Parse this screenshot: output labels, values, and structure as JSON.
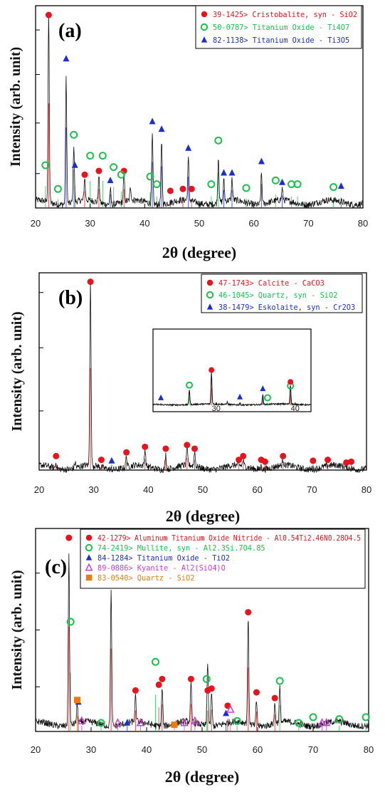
{
  "colors": {
    "red": "#e8141c",
    "green": "#19c24a",
    "blue": "#1a2fd0",
    "magenta": "#d43bd4",
    "orange": "#f07a10",
    "pattern": "#111111"
  },
  "chart_data": [
    {
      "type": "line",
      "panel_label": "(a)",
      "xlabel": "2θ (degree)",
      "ylabel": "Intensity (arb. unit)",
      "xlim": [
        20,
        80
      ],
      "xticks": [
        "20",
        "30",
        "40",
        "50",
        "60",
        "70",
        "80"
      ],
      "legend": [
        {
          "marker": "circle-filled",
          "color": "red",
          "text": "39-1425> Cristobalite, syn - SiO2"
        },
        {
          "marker": "circle-open",
          "color": "green",
          "text": "50-0787> Titanium Oxide - Ti4O7"
        },
        {
          "marker": "triangle",
          "color": "blue",
          "text": "82-1138> Titanium Oxide - Ti3O5"
        }
      ],
      "markers": {
        "red": [
          [
            22.4,
            1.0
          ],
          [
            29.0,
            0.16
          ],
          [
            31.6,
            0.18
          ],
          [
            36.2,
            0.18
          ],
          [
            44.7,
            0.075
          ],
          [
            47.0,
            0.085
          ],
          [
            48.6,
            0.085
          ]
        ],
        "green": [
          [
            21.8,
            0.21
          ],
          [
            24.1,
            0.085
          ],
          [
            27.0,
            0.37
          ],
          [
            30.0,
            0.26
          ],
          [
            32.3,
            0.26
          ],
          [
            34.3,
            0.2
          ],
          [
            35.7,
            0.16
          ],
          [
            41.0,
            0.15
          ],
          [
            42.2,
            0.11
          ],
          [
            52.2,
            0.11
          ],
          [
            53.5,
            0.34
          ],
          [
            58.6,
            0.09
          ],
          [
            64.0,
            0.13
          ],
          [
            66.9,
            0.11
          ],
          [
            68.0,
            0.11
          ],
          [
            74.6,
            0.095
          ]
        ],
        "blue": [
          [
            25.6,
            0.77
          ],
          [
            27.2,
            0.21
          ],
          [
            33.7,
            0.13
          ],
          [
            41.4,
            0.44
          ],
          [
            43.1,
            0.4
          ],
          [
            48.0,
            0.3
          ],
          [
            54.5,
            0.17
          ],
          [
            56.0,
            0.17
          ],
          [
            61.4,
            0.23
          ],
          [
            65.2,
            0.12
          ],
          [
            76.0,
            0.1
          ]
        ]
      },
      "peaks": [
        [
          22.4,
          1.0
        ],
        [
          25.6,
          0.66
        ],
        [
          27.0,
          0.3
        ],
        [
          29.0,
          0.12
        ],
        [
          31.6,
          0.14
        ],
        [
          33.7,
          0.08
        ],
        [
          36.2,
          0.15
        ],
        [
          37.4,
          0.07
        ],
        [
          41.4,
          0.36
        ],
        [
          43.1,
          0.32
        ],
        [
          48.0,
          0.22
        ],
        [
          53.5,
          0.24
        ],
        [
          54.5,
          0.11
        ],
        [
          56.0,
          0.11
        ],
        [
          61.4,
          0.16
        ],
        [
          65.2,
          0.06
        ]
      ]
    },
    {
      "type": "line",
      "panel_label": "(b)",
      "xlabel": "2θ (degree)",
      "ylabel": "Intensity (arb. unit)",
      "xlim": [
        20,
        80
      ],
      "xticks": [
        "20",
        "30",
        "40",
        "50",
        "60",
        "70",
        "80"
      ],
      "legend": [
        {
          "marker": "circle-filled",
          "color": "red",
          "text": "47-1743> Calcite - CaCO3"
        },
        {
          "marker": "circle-open",
          "color": "green",
          "text": "46-1045> Quartz, syn - SiO2"
        },
        {
          "marker": "triangle",
          "color": "blue",
          "text": "38-1479> Eskolaite, syn - Cr2O3"
        }
      ],
      "markers": {
        "red": [
          [
            23.1,
            0.06
          ],
          [
            29.4,
            1.0
          ],
          [
            31.4,
            0.04
          ],
          [
            36.0,
            0.08
          ],
          [
            39.4,
            0.11
          ],
          [
            43.2,
            0.1
          ],
          [
            47.1,
            0.12
          ],
          [
            48.5,
            0.1
          ],
          [
            56.6,
            0.04
          ],
          [
            57.4,
            0.06
          ],
          [
            60.7,
            0.04
          ],
          [
            61.4,
            0.03
          ],
          [
            64.7,
            0.06
          ],
          [
            70.2,
            0.035
          ],
          [
            72.9,
            0.04
          ],
          [
            76.3,
            0.025
          ],
          [
            77.2,
            0.03
          ]
        ],
        "green": [],
        "blue": [
          [
            33.3,
            0.035
          ]
        ]
      },
      "peaks": [
        [
          23.1,
          0.03
        ],
        [
          26.6,
          0.03
        ],
        [
          29.4,
          1.0
        ],
        [
          36.0,
          0.06
        ],
        [
          39.4,
          0.09
        ],
        [
          43.2,
          0.08
        ],
        [
          47.1,
          0.1
        ],
        [
          48.5,
          0.08
        ],
        [
          57.4,
          0.03
        ],
        [
          60.7,
          0.02
        ],
        [
          64.7,
          0.03
        ]
      ],
      "inset": {
        "xticks": [
          "30",
          "40"
        ],
        "xlim": [
          22,
          42
        ],
        "markers": {
          "red": [
            [
              29.4,
              0.8
            ],
            [
              39.4,
              0.5
            ]
          ],
          "green": [
            [
              26.6,
              0.42
            ],
            [
              36.5,
              0.1
            ],
            [
              39.4,
              0.4
            ]
          ],
          "blue": [
            [
              23.0,
              0.1
            ],
            [
              33.0,
              0.12
            ],
            [
              35.9,
              0.33
            ]
          ]
        },
        "peaks": [
          [
            26.6,
            0.38
          ],
          [
            29.4,
            0.8
          ],
          [
            31.4,
            0.06
          ],
          [
            33.0,
            0.06
          ],
          [
            35.9,
            0.24
          ],
          [
            39.4,
            0.48
          ]
        ]
      }
    },
    {
      "type": "line",
      "panel_label": "(c)",
      "xlabel": "2θ (degree)",
      "ylabel": "Intensity (arb. unit)",
      "xlim": [
        20,
        80
      ],
      "xticks": [
        "20",
        "30",
        "40",
        "50",
        "60",
        "70",
        "80"
      ],
      "legend": [
        {
          "marker": "circle-filled",
          "color": "red",
          "text": "42-1279> Aluminum Titanium Oxide Nitride - Al0.54Ti2.46N0.28O4.5"
        },
        {
          "marker": "circle-open",
          "color": "green",
          "text": "74-2419> Mullite, syn - Al2.3Si.7O4.85"
        },
        {
          "marker": "triangle",
          "color": "blue",
          "text": "84-1284> Titanium Oxide - TiO2"
        },
        {
          "marker": "triangle-open",
          "color": "magenta",
          "text": "89-0886> Kyanite - Al2(SiO4)O"
        },
        {
          "marker": "square",
          "color": "orange",
          "text": "83-0540> Quartz - SiO2"
        }
      ],
      "markers": {
        "red": [
          [
            26.0,
            1.0
          ],
          [
            33.6,
            0.79
          ],
          [
            38.0,
            0.2
          ],
          [
            42.2,
            0.23
          ],
          [
            42.8,
            0.26
          ],
          [
            48.0,
            0.26
          ],
          [
            51.0,
            0.2
          ],
          [
            51.7,
            0.21
          ],
          [
            54.6,
            0.12
          ],
          [
            58.3,
            0.61
          ],
          [
            59.8,
            0.19
          ],
          [
            63.1,
            0.16
          ]
        ],
        "green": [
          [
            26.3,
            0.56
          ],
          [
            31.8,
            0.03
          ],
          [
            41.6,
            0.35
          ],
          [
            50.8,
            0.26
          ],
          [
            56.3,
            0.04
          ],
          [
            64.0,
            0.25
          ],
          [
            67.4,
            0.03
          ],
          [
            70.0,
            0.06
          ],
          [
            74.7,
            0.05
          ],
          [
            79.5,
            0.06
          ]
        ],
        "blue": [
          [
            27.7,
            0.14
          ],
          [
            36.5,
            0.03
          ],
          [
            54.3,
            0.08
          ]
        ],
        "magenta": [
          [
            28.3,
            0.04
          ],
          [
            34.8,
            0.03
          ],
          [
            38.9,
            0.03
          ],
          [
            46.8,
            0.03
          ],
          [
            48.7,
            0.04
          ],
          [
            55.1,
            0.1
          ],
          [
            71.6,
            0.03
          ],
          [
            72.4,
            0.03
          ]
        ],
        "orange": [
          [
            27.5,
            0.15
          ],
          [
            45.0,
            0.02
          ]
        ]
      },
      "peaks": [
        [
          26.0,
          0.9
        ],
        [
          27.5,
          0.1
        ],
        [
          33.6,
          0.71
        ],
        [
          38.0,
          0.13
        ],
        [
          42.8,
          0.2
        ],
        [
          48.0,
          0.2
        ],
        [
          51.0,
          0.34
        ],
        [
          51.7,
          0.18
        ],
        [
          58.3,
          0.56
        ],
        [
          59.8,
          0.13
        ],
        [
          63.1,
          0.1
        ],
        [
          64.0,
          0.18
        ]
      ]
    }
  ]
}
